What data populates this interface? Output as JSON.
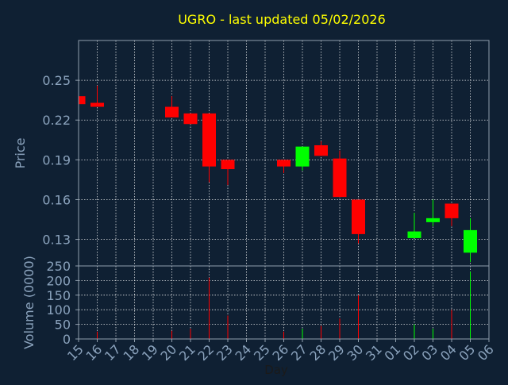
{
  "chart_data": {
    "type": "candlestick",
    "title": "UGRO - last updated 05/02/2026",
    "xlabel": "Day",
    "price_panel": {
      "ylabel": "Price",
      "ylim": [
        0.11,
        0.28
      ],
      "yticks": [
        0.13,
        0.16,
        0.19,
        0.22,
        0.25
      ],
      "ytick_labels": [
        "0.13",
        "0.16",
        "0.19",
        "0.22",
        "0.25"
      ]
    },
    "volume_panel": {
      "ylabel": "Volume (0000)",
      "ylim": [
        0,
        250
      ],
      "yticks": [
        0,
        50,
        100,
        150,
        200,
        250
      ],
      "ytick_labels": [
        "0",
        "50",
        "100",
        "150",
        "200",
        "250"
      ]
    },
    "x_ticks": [
      "15",
      "16",
      "17",
      "18",
      "19",
      "20",
      "21",
      "22",
      "23",
      "24",
      "25",
      "26",
      "27",
      "28",
      "29",
      "30",
      "31",
      "01",
      "02",
      "03",
      "04",
      "05",
      "06"
    ],
    "grid": true,
    "colors": {
      "background": "#0f2033",
      "grid": "#ffffff",
      "frame": "#8f9eac",
      "axis_text": "#8ba3bd",
      "title": "#ffff00",
      "up": "#00ff00",
      "down": "#ff0000"
    },
    "candles": [
      {
        "day": "15",
        "open": 0.238,
        "close": 0.232,
        "high": 0.238,
        "low": 0.232,
        "volume": 0
      },
      {
        "day": "16",
        "open": 0.233,
        "close": 0.23,
        "high": 0.246,
        "low": 0.23,
        "volume": 25
      },
      {
        "day": "20",
        "open": 0.23,
        "close": 0.222,
        "high": 0.238,
        "low": 0.222,
        "volume": 28
      },
      {
        "day": "21",
        "open": 0.225,
        "close": 0.217,
        "high": 0.225,
        "low": 0.217,
        "volume": 35
      },
      {
        "day": "22",
        "open": 0.225,
        "close": 0.185,
        "high": 0.225,
        "low": 0.173,
        "volume": 210
      },
      {
        "day": "23",
        "open": 0.19,
        "close": 0.183,
        "high": 0.19,
        "low": 0.171,
        "volume": 80
      },
      {
        "day": "26",
        "open": 0.19,
        "close": 0.185,
        "high": 0.19,
        "low": 0.18,
        "volume": 25
      },
      {
        "day": "27",
        "open": 0.185,
        "close": 0.2,
        "high": 0.2,
        "low": 0.182,
        "volume": 35
      },
      {
        "day": "28",
        "open": 0.201,
        "close": 0.193,
        "high": 0.204,
        "low": 0.193,
        "volume": 45
      },
      {
        "day": "29",
        "open": 0.191,
        "close": 0.162,
        "high": 0.197,
        "low": 0.162,
        "volume": 70
      },
      {
        "day": "30",
        "open": 0.16,
        "close": 0.134,
        "high": 0.16,
        "low": 0.127,
        "volume": 150
      },
      {
        "day": "02",
        "open": 0.131,
        "close": 0.136,
        "high": 0.15,
        "low": 0.131,
        "volume": 50
      },
      {
        "day": "03",
        "open": 0.143,
        "close": 0.146,
        "high": 0.16,
        "low": 0.14,
        "volume": 35
      },
      {
        "day": "04",
        "open": 0.157,
        "close": 0.146,
        "high": 0.157,
        "low": 0.14,
        "volume": 100
      },
      {
        "day": "05",
        "open": 0.12,
        "close": 0.137,
        "high": 0.146,
        "low": 0.113,
        "volume": 230
      }
    ]
  }
}
